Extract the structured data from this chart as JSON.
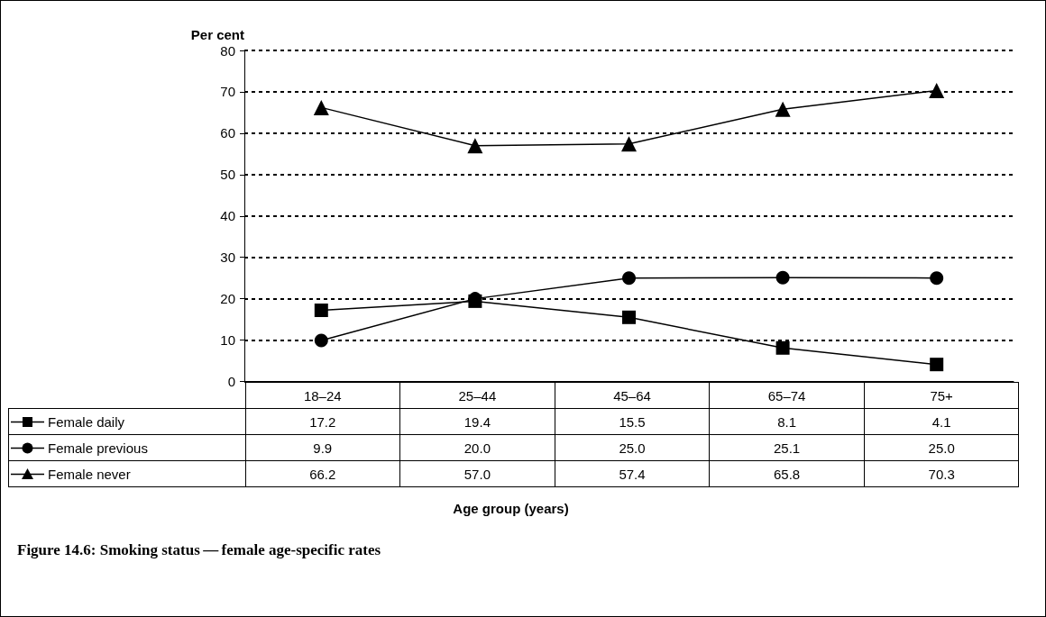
{
  "chart_data": {
    "type": "line",
    "title": "Figure 14.6: Smoking status — female age-specific rates",
    "annotations": [
      "Age group (years)"
    ],
    "ylabel": "Per cent",
    "categories": [
      "18–24",
      "25–44",
      "45–64",
      "65–74",
      "75+"
    ],
    "series": [
      {
        "name": "Female daily",
        "color": "#000000",
        "marker": "square",
        "values": [
          17.2,
          19.4,
          15.5,
          8.1,
          4.1
        ],
        "value_labels": [
          "17.2",
          "19.4",
          "15.5",
          "8.1",
          "4.1"
        ]
      },
      {
        "name": "Female previous",
        "color": "#000000",
        "marker": "circle",
        "values": [
          9.9,
          20.0,
          25.0,
          25.1,
          25.0
        ],
        "value_labels": [
          "9.9",
          "20.0",
          "25.0",
          "25.1",
          "25.0"
        ]
      },
      {
        "name": "Female never",
        "color": "#000000",
        "marker": "triangle",
        "values": [
          66.2,
          57.0,
          57.4,
          65.8,
          70.3
        ],
        "value_labels": [
          "66.2",
          "57.0",
          "57.4",
          "65.8",
          "70.3"
        ]
      }
    ],
    "ylim": [
      0,
      80
    ],
    "yticks": [
      0,
      10,
      20,
      30,
      40,
      50,
      60,
      70,
      80
    ],
    "grid": "y",
    "legend": "bottom",
    "line_style": "solid"
  }
}
